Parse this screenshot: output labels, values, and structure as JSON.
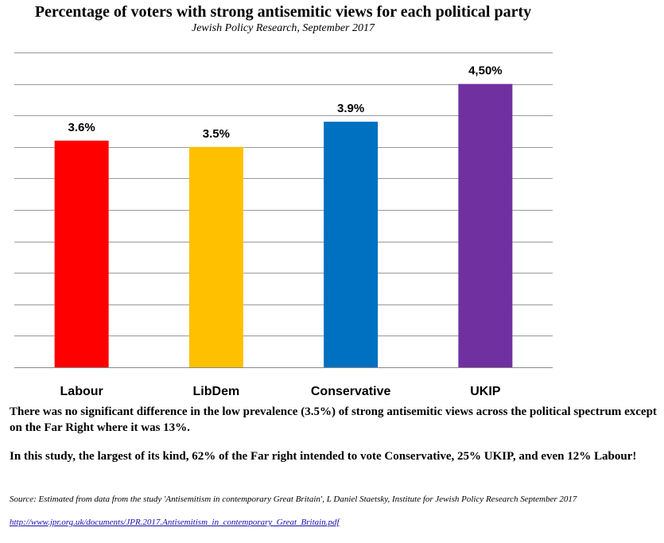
{
  "chart_data": {
    "type": "bar",
    "title": "Percentage of voters with strong antisemitic views for each political party",
    "subtitle": "Jewish Policy Research, September 2017",
    "categories": [
      "Labour",
      "LibDem",
      "Conservative",
      "UKIP"
    ],
    "values": [
      3.6,
      3.5,
      3.9,
      4.5
    ],
    "data_labels": [
      "3.6%",
      "3.5%",
      "3.9%",
      "4,50%"
    ],
    "colors": [
      "#ff0000",
      "#ffc000",
      "#0070c0",
      "#7030a0"
    ],
    "ylim": [
      0,
      5
    ],
    "grid": true,
    "y_tick_labels_shown": false
  },
  "notes": {
    "paragraph_1": "There was no significant difference in the low prevalence (3.5%) of strong antisemitic views across the political spectrum except on the Far Right where it was 13%.",
    "paragraph_2": "In this study, the largest of its kind, 62% of the Far right intended to vote Conservative, 25% UKIP, and even 12% Labour!"
  },
  "source": {
    "text": "Source:  Estimated from data from the study 'Antisemitism in contemporary Great Britain', L Daniel Staetsky, Institute for Jewish Policy Research September 2017",
    "link": "http://www.jpr.org.uk/documents/JPR.2017.Antisemitism_in_contemporary_Great_Britain.pdf"
  }
}
